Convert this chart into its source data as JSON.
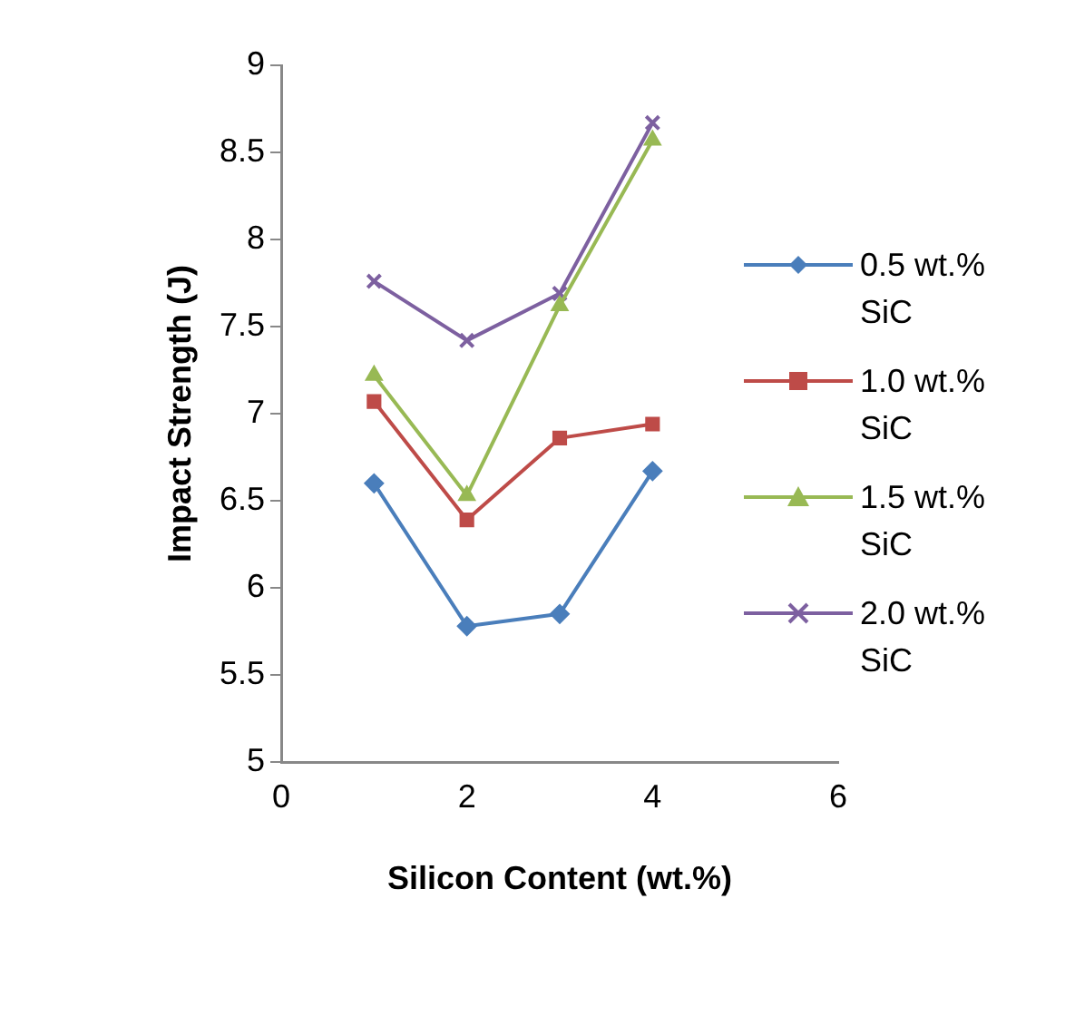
{
  "chart_data": {
    "type": "line",
    "xlabel": "Silicon Content (wt.%)",
    "ylabel": "Impact Strength (J)",
    "x": [
      1,
      2,
      3,
      4
    ],
    "series": [
      {
        "name": "0.5 wt.% SiC",
        "color": "#4a7ebb",
        "marker": "diamond",
        "values": [
          6.6,
          5.78,
          5.85,
          6.67
        ]
      },
      {
        "name": "1.0 wt.% SiC",
        "color": "#be4b48",
        "marker": "square",
        "values": [
          7.07,
          6.39,
          6.86,
          6.94
        ]
      },
      {
        "name": "1.5 wt.% SiC",
        "color": "#98b954",
        "marker": "triangle",
        "values": [
          7.22,
          6.53,
          7.62,
          8.57
        ]
      },
      {
        "name": "2.0 wt.% SiC",
        "color": "#7d60a0",
        "marker": "cross",
        "values": [
          7.76,
          7.42,
          7.69,
          8.67
        ]
      }
    ],
    "xlim": [
      0,
      6
    ],
    "xticks": [
      0,
      2,
      4,
      6
    ],
    "ylim": [
      5,
      9
    ],
    "yticks": [
      5,
      5.5,
      6,
      6.5,
      7,
      7.5,
      8,
      8.5,
      9
    ],
    "grid": false,
    "legend": "right",
    "line_style": "solid"
  }
}
